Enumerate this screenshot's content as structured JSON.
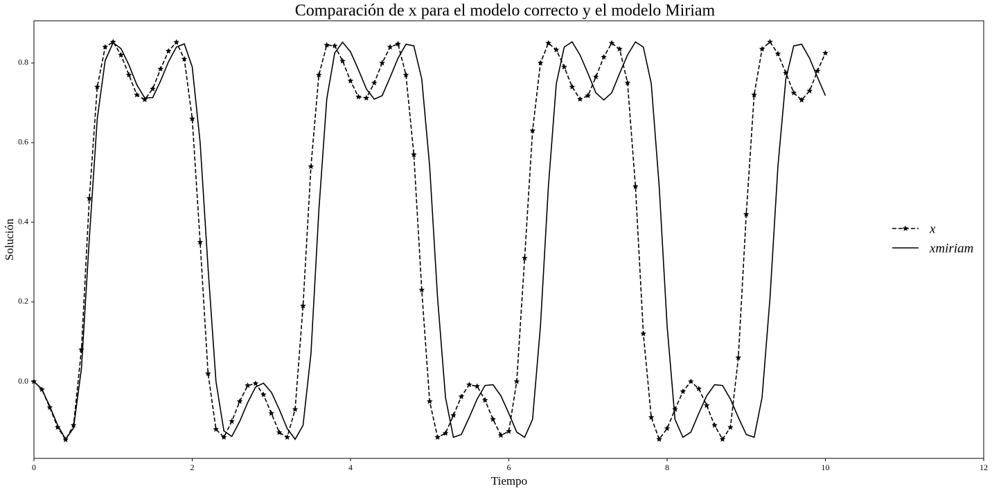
{
  "chart_data": {
    "type": "line",
    "title": "Comparación de x para el modelo correcto y el modelo Miriam",
    "x_label": "Tiempo",
    "y_label": "Solución",
    "x": [
      0,
      0.1,
      0.2,
      0.3,
      0.4,
      0.5,
      0.6,
      0.7,
      0.8,
      0.9,
      1,
      1.1,
      1.2,
      1.3,
      1.4,
      1.5,
      1.6,
      1.7,
      1.8,
      1.9,
      2,
      2.1,
      2.2,
      2.3,
      2.4,
      2.5,
      2.6,
      2.7,
      2.8,
      2.9,
      3,
      3.1,
      3.2,
      3.3,
      3.4,
      3.5,
      3.6,
      3.7,
      3.8,
      3.9,
      4,
      4.1,
      4.2,
      4.3,
      4.4,
      4.5,
      4.6,
      4.7,
      4.8,
      4.9,
      5,
      5.1,
      5.2,
      5.3,
      5.4,
      5.5,
      5.6,
      5.7,
      5.8,
      5.9,
      6,
      6.1,
      6.2,
      6.3,
      6.4,
      6.5,
      6.6,
      6.7,
      6.8,
      6.9,
      7,
      7.1,
      7.2,
      7.3,
      7.4,
      7.5,
      7.6,
      7.7,
      7.8,
      7.9,
      8,
      8.1,
      8.2,
      8.3,
      8.4,
      8.5,
      8.6,
      8.7,
      8.8,
      8.9,
      9,
      9.1,
      9.2,
      9.3,
      9.4,
      9.5,
      9.6,
      9.7,
      9.8,
      9.9,
      10
    ],
    "series": [
      {
        "name": "x",
        "color": "#000000",
        "line_style": "dashed",
        "marker": "star",
        "values": [
          0,
          -0.02,
          -0.065,
          -0.115,
          -0.146,
          -0.11,
          0.08,
          0.46,
          0.74,
          0.84,
          0.853,
          0.82,
          0.77,
          0.72,
          0.708,
          0.735,
          0.785,
          0.83,
          0.852,
          0.81,
          0.66,
          0.35,
          0.02,
          -0.12,
          -0.14,
          -0.1,
          -0.05,
          -0.01,
          -0.005,
          -0.033,
          -0.08,
          -0.128,
          -0.14,
          -0.07,
          0.19,
          0.54,
          0.77,
          0.845,
          0.843,
          0.805,
          0.755,
          0.715,
          0.712,
          0.75,
          0.8,
          0.84,
          0.848,
          0.77,
          0.57,
          0.23,
          -0.05,
          -0.14,
          -0.13,
          -0.085,
          -0.038,
          -0.008,
          -0.012,
          -0.047,
          -0.095,
          -0.135,
          -0.125,
          0,
          0.31,
          0.63,
          0.8,
          0.85,
          0.833,
          0.79,
          0.74,
          0.709,
          0.718,
          0.765,
          0.815,
          0.85,
          0.835,
          0.75,
          0.49,
          0.12,
          -0.09,
          -0.145,
          -0.118,
          -0.07,
          -0.025,
          0,
          -0.018,
          -0.06,
          -0.11,
          -0.145,
          -0.115,
          0.06,
          0.42,
          0.72,
          0.835,
          0.853,
          0.823,
          0.775,
          0.725,
          0.707,
          0.73,
          0.78,
          0.825
        ]
      },
      {
        "name": "xmiriam",
        "color": "#000000",
        "line_style": "solid",
        "marker": "none",
        "values": [
          0,
          -0.019,
          -0.062,
          -0.11,
          -0.145,
          -0.117,
          0.033,
          0.36,
          0.66,
          0.806,
          0.851,
          0.836,
          0.795,
          0.745,
          0.712,
          0.713,
          0.755,
          0.803,
          0.84,
          0.848,
          0.79,
          0.6,
          0.285,
          0,
          -0.124,
          -0.138,
          -0.1,
          -0.053,
          -0.014,
          -0.004,
          -0.027,
          -0.07,
          -0.118,
          -0.145,
          -0.11,
          0.07,
          0.43,
          0.71,
          0.825,
          0.852,
          0.828,
          0.783,
          0.735,
          0.709,
          0.718,
          0.764,
          0.812,
          0.847,
          0.843,
          0.76,
          0.54,
          0.21,
          -0.04,
          -0.14,
          -0.133,
          -0.09,
          -0.044,
          -0.01,
          -0.008,
          -0.036,
          -0.08,
          -0.127,
          -0.14,
          -0.095,
          0.14,
          0.49,
          0.748,
          0.84,
          0.853,
          0.82,
          0.774,
          0.725,
          0.707,
          0.725,
          0.774,
          0.82,
          0.853,
          0.84,
          0.748,
          0.49,
          0.14,
          -0.095,
          -0.14,
          -0.127,
          -0.08,
          -0.036,
          -0.008,
          -0.01,
          -0.044,
          -0.09,
          -0.133,
          -0.14,
          -0.04,
          0.21,
          0.54,
          0.76,
          0.843,
          0.847,
          0.812,
          0.764,
          0.718
        ]
      }
    ],
    "xlim": [
      0,
      12
    ],
    "xticks": [
      0,
      2,
      4,
      6,
      8,
      10,
      12
    ],
    "ylim": [
      -0.193,
      0.906
    ],
    "yticks": [
      {
        "value": 0,
        "label": "0.0"
      },
      0.2,
      0.4,
      0.6,
      0.8
    ],
    "grid": false,
    "legend": "right"
  }
}
